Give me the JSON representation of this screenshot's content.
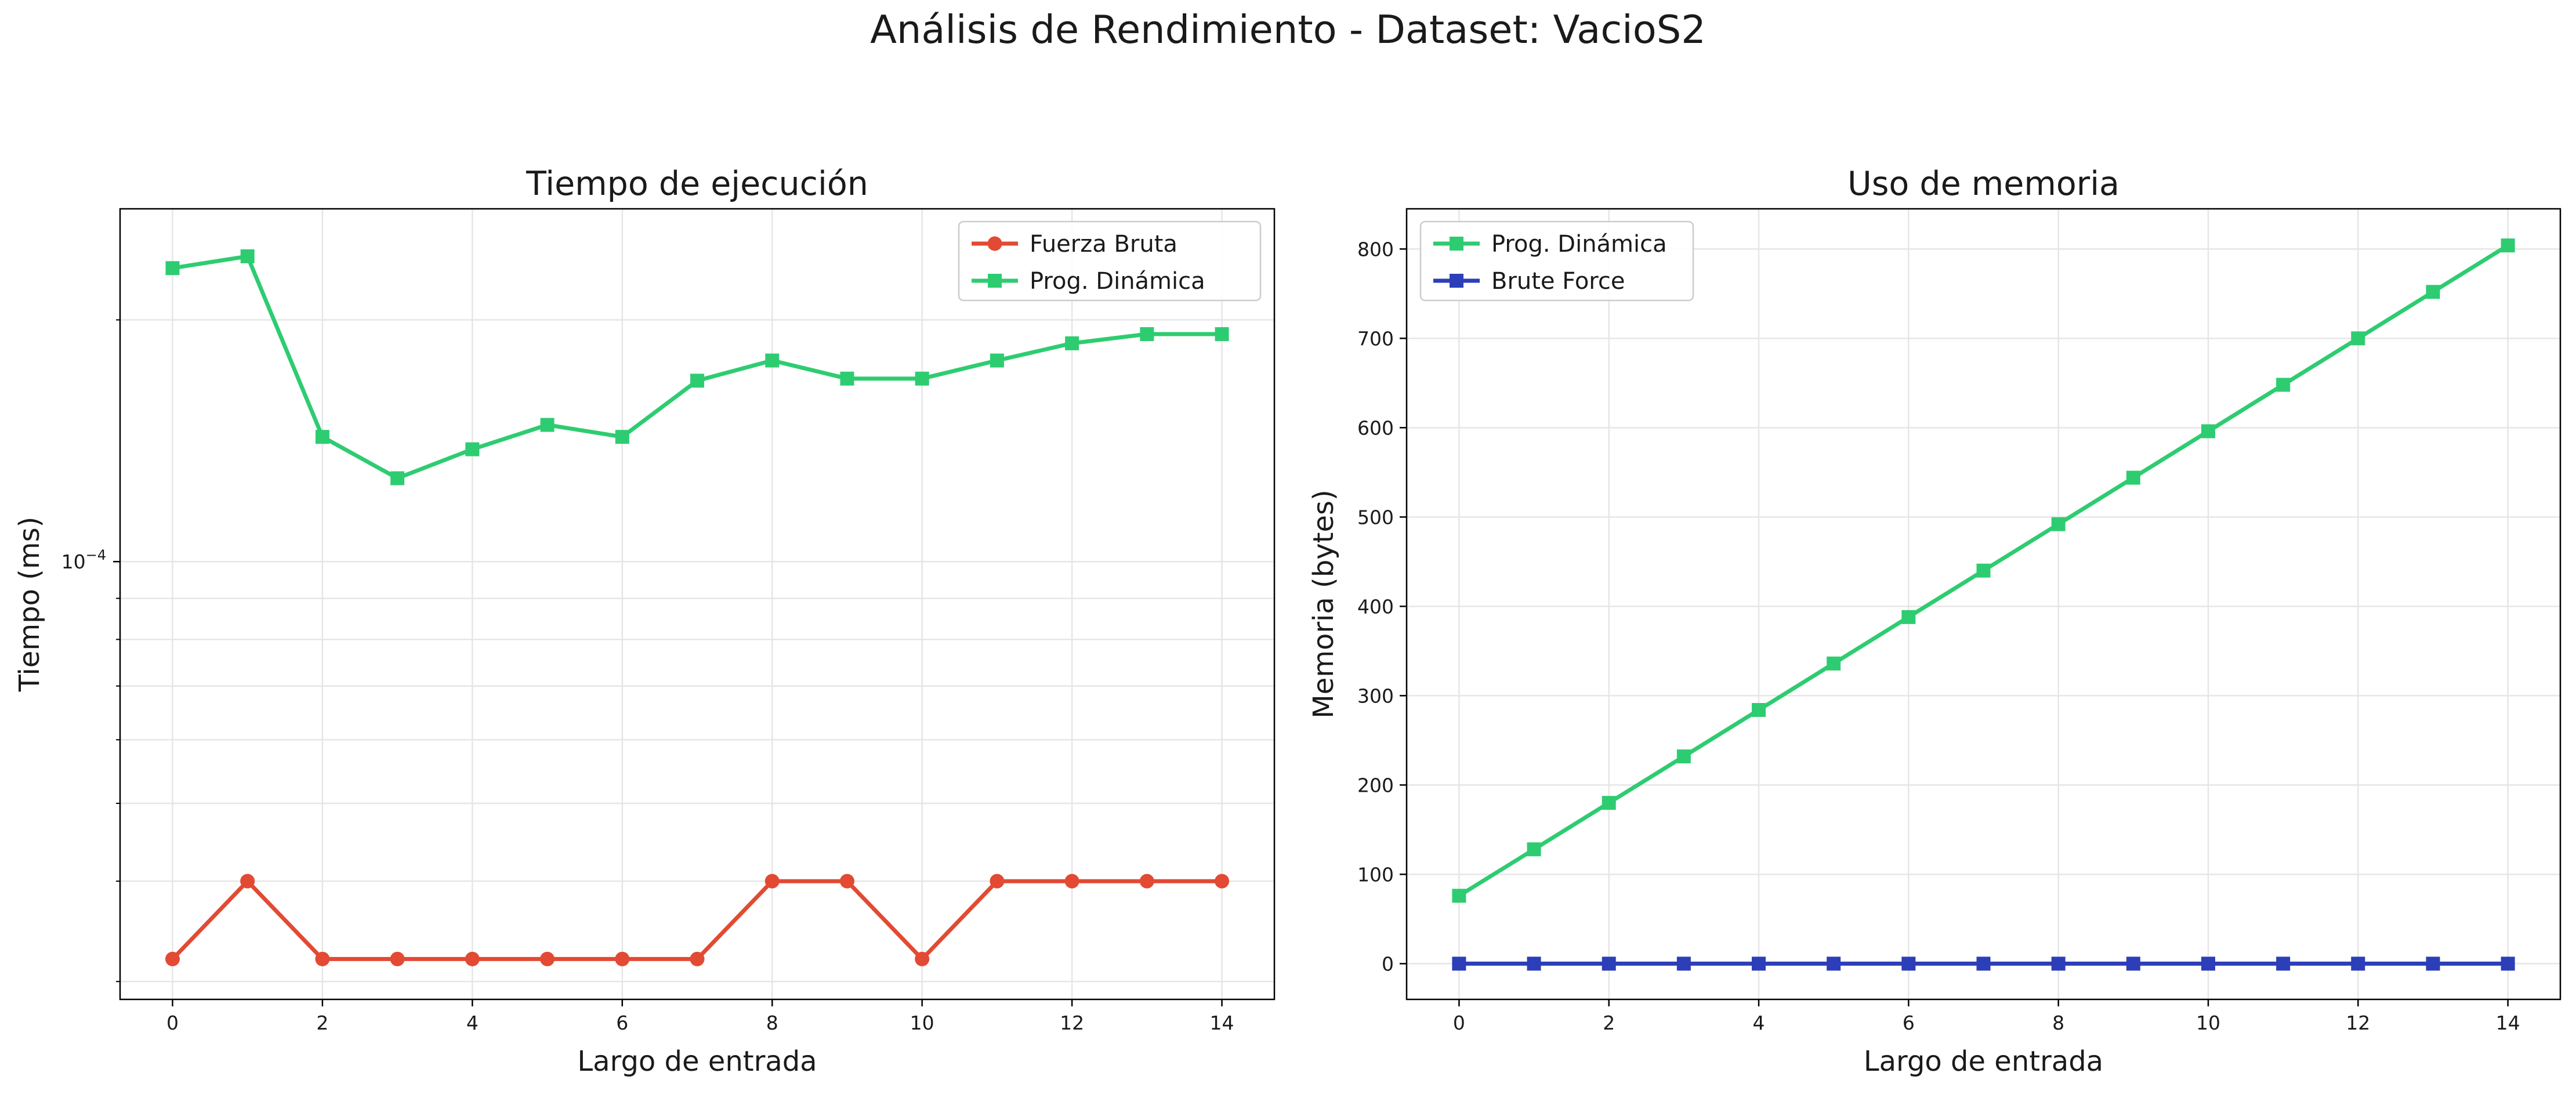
{
  "figure": {
    "suptitle": "Análisis de Rendimiento - Dataset: VacioS2"
  },
  "chart_data": [
    {
      "type": "line",
      "title": "Tiempo de ejecución",
      "xlabel": "Largo de entrada",
      "ylabel": "Tiempo (ms)",
      "yscale": "log",
      "x": [
        0,
        1,
        2,
        3,
        4,
        5,
        6,
        7,
        8,
        9,
        10,
        11,
        12,
        13,
        14
      ],
      "xticks": [
        0,
        2,
        4,
        6,
        8,
        10,
        12,
        14
      ],
      "xlim": [
        -0.7,
        14.7
      ],
      "ylim": [
        2.85e-05,
        0.000275
      ],
      "ytick_labels": [
        {
          "value": 0.0001,
          "base": "10",
          "exp": "−4"
        }
      ],
      "grid": true,
      "legend_position": "upper right",
      "series": [
        {
          "name": "Fuerza Bruta",
          "color": "#e24a33",
          "marker": "circle",
          "values": [
            3.2e-05,
            4e-05,
            3.2e-05,
            3.2e-05,
            3.2e-05,
            3.2e-05,
            3.2e-05,
            3.2e-05,
            4e-05,
            4e-05,
            3.2e-05,
            4e-05,
            4e-05,
            4e-05,
            4e-05
          ]
        },
        {
          "name": "Prog. Dinámica",
          "color": "#2ecc71",
          "marker": "square",
          "values": [
            0.000232,
            0.00024,
            0.000143,
            0.000127,
            0.000138,
            0.000148,
            0.000143,
            0.000168,
            0.000178,
            0.000169,
            0.000169,
            0.000178,
            0.000187,
            0.000192,
            0.000192
          ]
        }
      ]
    },
    {
      "type": "line",
      "title": "Uso de memoria",
      "xlabel": "Largo de entrada",
      "ylabel": "Memoria (bytes)",
      "yscale": "linear",
      "x": [
        0,
        1,
        2,
        3,
        4,
        5,
        6,
        7,
        8,
        9,
        10,
        11,
        12,
        13,
        14
      ],
      "xticks": [
        0,
        2,
        4,
        6,
        8,
        10,
        12,
        14
      ],
      "yticks": [
        0,
        100,
        200,
        300,
        400,
        500,
        600,
        700,
        800
      ],
      "xlim": [
        -0.7,
        14.7
      ],
      "ylim": [
        -40,
        845
      ],
      "grid": true,
      "legend_position": "upper left",
      "series": [
        {
          "name": "Prog. Dinámica",
          "color": "#2ecc71",
          "marker": "square",
          "values": [
            76,
            128,
            180,
            232,
            284,
            336,
            388,
            440,
            492,
            544,
            596,
            648,
            700,
            752,
            804
          ]
        },
        {
          "name": "Brute Force",
          "color": "#2c3eb8",
          "marker": "square",
          "values": [
            0,
            0,
            0,
            0,
            0,
            0,
            0,
            0,
            0,
            0,
            0,
            0,
            0,
            0,
            0
          ]
        }
      ]
    }
  ]
}
